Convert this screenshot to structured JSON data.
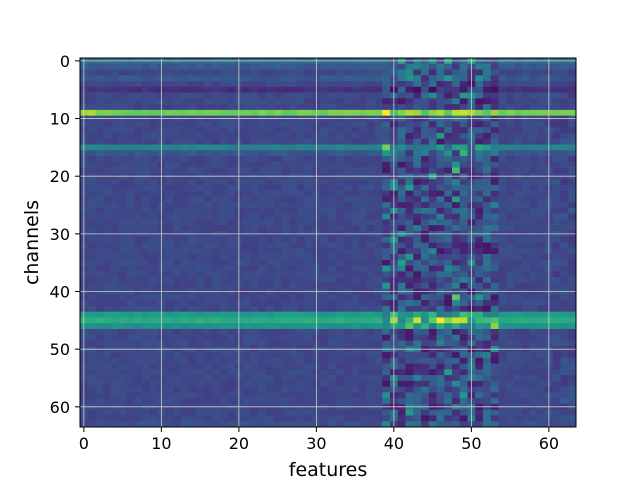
{
  "chart_data": {
    "type": "heatmap",
    "title": "",
    "xlabel": "features",
    "ylabel": "channels",
    "n_cols": 64,
    "n_rows": 64,
    "xlim": [
      -0.5,
      63.5
    ],
    "ylim": [
      63.5,
      -0.5
    ],
    "x_ticks": [
      "0",
      "10",
      "20",
      "30",
      "40",
      "50",
      "60"
    ],
    "y_ticks": [
      "0",
      "10",
      "20",
      "30",
      "40",
      "50",
      "60"
    ],
    "grid": true,
    "colormap": "viridis",
    "color_range": [
      0,
      1
    ],
    "colors": {
      "viridis_stops": [
        "#440154",
        "#482878",
        "#3e4989",
        "#31688e",
        "#26828e",
        "#1f9e89",
        "#35b779",
        "#6ece58",
        "#b5de2b",
        "#fde725"
      ],
      "grid": "#cfcfcf",
      "axis": "#000000"
    },
    "base_level": 0.22,
    "row_levels": [
      {
        "row": 0,
        "level": 0.34
      },
      {
        "row": 1,
        "level": 0.28
      },
      {
        "row": 3,
        "level": 0.27
      },
      {
        "row": 5,
        "level": 0.14
      },
      {
        "row": 9,
        "level": 0.78
      },
      {
        "row": 15,
        "level": 0.45
      },
      {
        "row": 16,
        "level": 0.27
      },
      {
        "row": 44,
        "level": 0.55
      },
      {
        "row": 45,
        "level": 0.62
      },
      {
        "row": 46,
        "level": 0.5
      },
      {
        "row": 63,
        "level": 0.24
      }
    ],
    "active_columns": [
      39,
      53
    ],
    "hot_cells": [
      {
        "col": 0,
        "row": 9,
        "value": 0.85
      },
      {
        "col": 1,
        "row": 9,
        "value": 0.88
      },
      {
        "col": 42,
        "row": 9,
        "value": 0.88
      },
      {
        "col": 48,
        "row": 9,
        "value": 0.9
      },
      {
        "col": 46,
        "row": 45,
        "value": 1.0
      },
      {
        "col": 48,
        "row": 45,
        "value": 0.92
      },
      {
        "col": 49,
        "row": 45,
        "value": 0.9
      },
      {
        "col": 48,
        "row": 41,
        "value": 0.75
      },
      {
        "col": 48,
        "row": 19,
        "value": 0.7
      },
      {
        "col": 47,
        "row": 0,
        "value": 0.62
      },
      {
        "col": 49,
        "row": 16,
        "value": 0.65
      },
      {
        "col": 45,
        "row": 20,
        "value": 0.6
      }
    ]
  }
}
